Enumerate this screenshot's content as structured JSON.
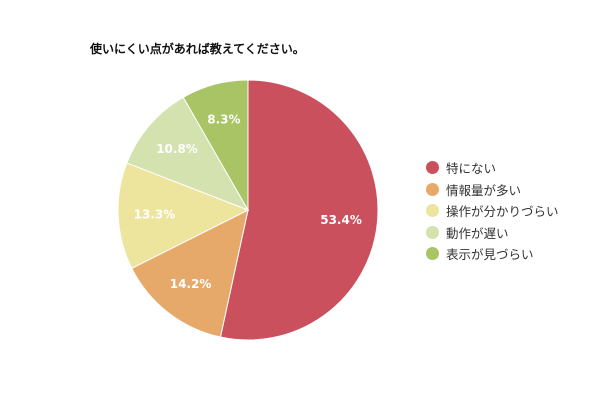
{
  "chart_data": {
    "type": "pie",
    "title": "使いにくい点があれば教えてください。",
    "categories": [
      "特にない",
      "情報量が多い",
      "操作が分かりづらい",
      "動作が遅い",
      "表示が見づらい"
    ],
    "values": [
      53.4,
      14.2,
      13.3,
      10.8,
      8.3
    ],
    "labels": [
      "53.4%",
      "14.2%",
      "13.3%",
      "10.8%",
      "8.3%"
    ],
    "colors": [
      "#c9505c",
      "#e6a96a",
      "#ede49e",
      "#d3e2ae",
      "#a8c465"
    ],
    "start": "top",
    "direction": "clockwise",
    "legend_position": "right"
  }
}
